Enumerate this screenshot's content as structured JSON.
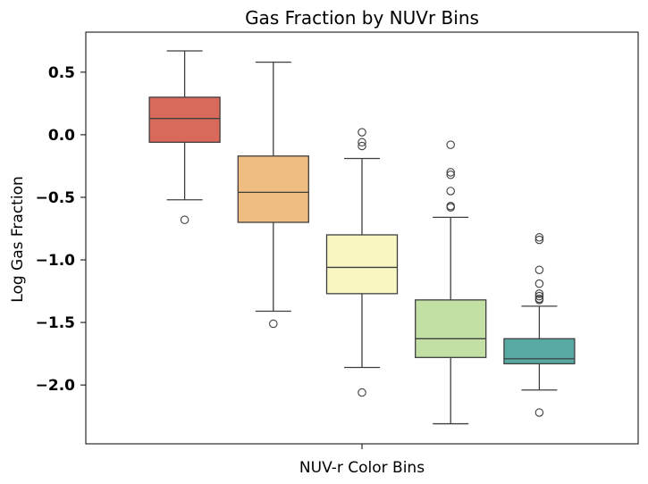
{
  "chart_data": {
    "type": "box",
    "title": "Gas Fraction by NUVr Bins",
    "xlabel": "NUV-r Color Bins",
    "ylabel": "Log Gas Fraction",
    "ylim": [
      -2.47,
      0.82
    ],
    "yticks": [
      0.5,
      0.0,
      -0.5,
      -1.0,
      -1.5,
      -2.0
    ],
    "ytick_labels": [
      "0.5",
      "0.0",
      "−0.5",
      "−1.0",
      "−1.5",
      "−2.0"
    ],
    "grid": false,
    "legend": "none",
    "boxes": [
      {
        "color": "#d9695a",
        "whisker_high": 0.67,
        "q3": 0.3,
        "median": 0.13,
        "q1": -0.06,
        "whisker_low": -0.52,
        "outliers": [
          -0.68
        ]
      },
      {
        "color": "#eebd7f",
        "whisker_high": 0.58,
        "q3": -0.17,
        "median": -0.46,
        "q1": -0.7,
        "whisker_low": -1.41,
        "outliers": [
          -1.51
        ]
      },
      {
        "color": "#f8f7c2",
        "whisker_high": -0.19,
        "q3": -0.8,
        "median": -1.06,
        "q1": -1.27,
        "whisker_low": -1.86,
        "outliers": [
          0.02,
          -0.06,
          -0.09,
          -2.06
        ]
      },
      {
        "color": "#c2dfa4",
        "whisker_high": -0.66,
        "q3": -1.32,
        "median": -1.63,
        "q1": -1.78,
        "whisker_low": -2.31,
        "outliers": [
          -0.08,
          -0.3,
          -0.32,
          -0.45,
          -0.57,
          -0.58
        ]
      },
      {
        "color": "#58a9a3",
        "whisker_high": -1.37,
        "q3": -1.63,
        "median": -1.79,
        "q1": -1.83,
        "whisker_low": -2.04,
        "outliers": [
          -0.82,
          -0.84,
          -1.08,
          -1.19,
          -1.27,
          -1.29,
          -1.31,
          -1.32,
          -2.22
        ]
      }
    ]
  }
}
